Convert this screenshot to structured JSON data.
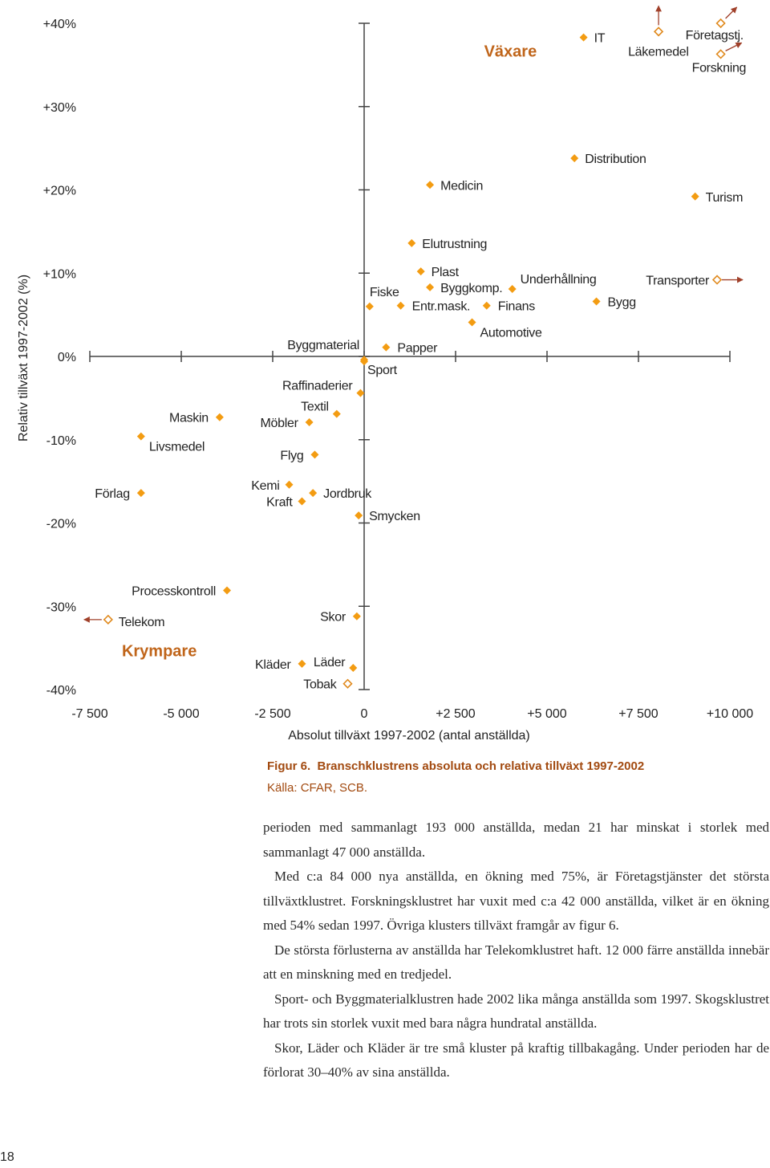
{
  "chart_data": {
    "type": "scatter",
    "xlabel": "Absolut tillväxt 1997-2002 (antal anställda)",
    "ylabel": "Relativ tillväxt 1997-2002 (%)",
    "xlim": [
      -7500,
      10000
    ],
    "ylim": [
      -40,
      40
    ],
    "x_ticks": [
      -7500,
      -5000,
      -2500,
      0,
      2500,
      5000,
      7500,
      10000
    ],
    "x_tick_labels": [
      "-7 500",
      "-5 000",
      "-2 500",
      "0",
      "+2 500",
      "+5 000",
      "+7 500",
      "+10 000"
    ],
    "y_ticks": [
      40,
      30,
      20,
      10,
      0,
      -10,
      -20,
      -30,
      -40
    ],
    "y_tick_labels": [
      "+40%",
      "+30%",
      "+20%",
      "+10%",
      "0%",
      "-10%",
      "-20%",
      "-30%",
      "-40%"
    ],
    "quadrant_labels": [
      {
        "text": "Växare",
        "x": 4000,
        "y": 36
      },
      {
        "text": "Krympare",
        "x": -5600,
        "y": -36
      }
    ],
    "marker_colors": {
      "filled": "#f39c12",
      "open": "#e08a1e",
      "arrow": "#a0402a"
    },
    "points": [
      {
        "name": "IT",
        "x": 6000,
        "y": 38.3,
        "marker": "filled"
      },
      {
        "name": "Läkemedel",
        "x": 8050,
        "y": 39,
        "marker": "open"
      },
      {
        "name": "Företagstj.",
        "x": 9750,
        "y": 40,
        "marker": "open"
      },
      {
        "name": "Forskning",
        "x": 9750,
        "y": 36.3,
        "marker": "open"
      },
      {
        "name": "Distribution",
        "x": 5750,
        "y": 23.8,
        "marker": "filled"
      },
      {
        "name": "Turism",
        "x": 9050,
        "y": 19.2,
        "marker": "filled"
      },
      {
        "name": "Medicin",
        "x": 1800,
        "y": 20.6,
        "marker": "filled"
      },
      {
        "name": "Elutrustning",
        "x": 1300,
        "y": 13.6,
        "marker": "filled"
      },
      {
        "name": "Plast",
        "x": 1550,
        "y": 10.2,
        "marker": "filled"
      },
      {
        "name": "Byggkomp.",
        "x": 1800,
        "y": 8.3,
        "marker": "filled"
      },
      {
        "name": "Underhållning",
        "x": 4050,
        "y": 8.1,
        "marker": "filled"
      },
      {
        "name": "Fiske",
        "x": 150,
        "y": 6,
        "marker": "filled"
      },
      {
        "name": "Entr.mask.",
        "x": 1000,
        "y": 6.1,
        "marker": "filled"
      },
      {
        "name": "Finans",
        "x": 3350,
        "y": 6.1,
        "marker": "filled"
      },
      {
        "name": "Bygg",
        "x": 6350,
        "y": 6.6,
        "marker": "filled"
      },
      {
        "name": "Transporter",
        "x": 9650,
        "y": 9.2,
        "marker": "open"
      },
      {
        "name": "Automotive",
        "x": 2950,
        "y": 4.1,
        "marker": "filled"
      },
      {
        "name": "Papper",
        "x": 600,
        "y": 1.1,
        "marker": "filled"
      },
      {
        "name": "Byggmaterial",
        "x": 0,
        "y": -0.4,
        "marker": "filled"
      },
      {
        "name": "Sport",
        "x": 0,
        "y": -0.6,
        "marker": "filled"
      },
      {
        "name": "Raffinaderier",
        "x": -100,
        "y": -4.4,
        "marker": "filled"
      },
      {
        "name": "Textil",
        "x": -750,
        "y": -6.9,
        "marker": "filled"
      },
      {
        "name": "Möbler",
        "x": -1500,
        "y": -7.9,
        "marker": "filled"
      },
      {
        "name": "Maskin",
        "x": -3950,
        "y": -7.3,
        "marker": "filled"
      },
      {
        "name": "Livsmedel",
        "x": -6100,
        "y": -9.6,
        "marker": "filled"
      },
      {
        "name": "Flyg",
        "x": -1350,
        "y": -11.8,
        "marker": "filled"
      },
      {
        "name": "Förlag",
        "x": -6100,
        "y": -16.4,
        "marker": "filled"
      },
      {
        "name": "Kemi",
        "x": -2050,
        "y": -15.4,
        "marker": "filled"
      },
      {
        "name": "Kraft",
        "x": -1700,
        "y": -17.4,
        "marker": "filled"
      },
      {
        "name": "Jordbruk",
        "x": -1400,
        "y": -16.4,
        "marker": "filled"
      },
      {
        "name": "Smycken",
        "x": -150,
        "y": -19.1,
        "marker": "filled"
      },
      {
        "name": "Processkontroll",
        "x": -3750,
        "y": -28.1,
        "marker": "filled"
      },
      {
        "name": "Telekom",
        "x": -7000,
        "y": -31.6,
        "marker": "open"
      },
      {
        "name": "Skor",
        "x": -200,
        "y": -31.2,
        "marker": "filled"
      },
      {
        "name": "Kläder",
        "x": -1700,
        "y": -36.9,
        "marker": "filled"
      },
      {
        "name": "Läder",
        "x": -300,
        "y": -37.4,
        "marker": "filled"
      },
      {
        "name": "Tobak",
        "x": -450,
        "y": -39.3,
        "marker": "open"
      }
    ]
  },
  "caption": {
    "figure_label": "Figur 6.",
    "figure_title": "Branschklustrens absoluta och relativa tillväxt 1997-2002",
    "source": "Källa: CFAR, SCB."
  },
  "body_paragraphs": [
    "perioden med sammanlagt 193 000 anställda, medan 21 har minskat i storlek med sammanlagt 47 000 anställda.",
    "Med c:a 84 000 nya anställda, en ökning med 75%, är Företagstjänster det största tillväxtklustret. Forskningsklustret har vuxit med c:a 42 000 anställda, vilket är en ökning med 54% sedan 1997. Övriga klusters tillväxt framgår av figur 6.",
    "De största förlusterna av anställda har Telekomklustret haft. 12 000 färre anställda innebär att en minskning med en tredjedel.",
    "Sport- och Byggmaterialklustren hade 2002 lika många anställda som 1997. Skogsklustret har trots sin storlek vuxit med bara några hundratal anställda.",
    "Skor, Läder och Kläder är tre små kluster på kraftig tillbakagång. Under perioden har de förlorat 30–40% av sina anställda."
  ],
  "page_number": "18"
}
